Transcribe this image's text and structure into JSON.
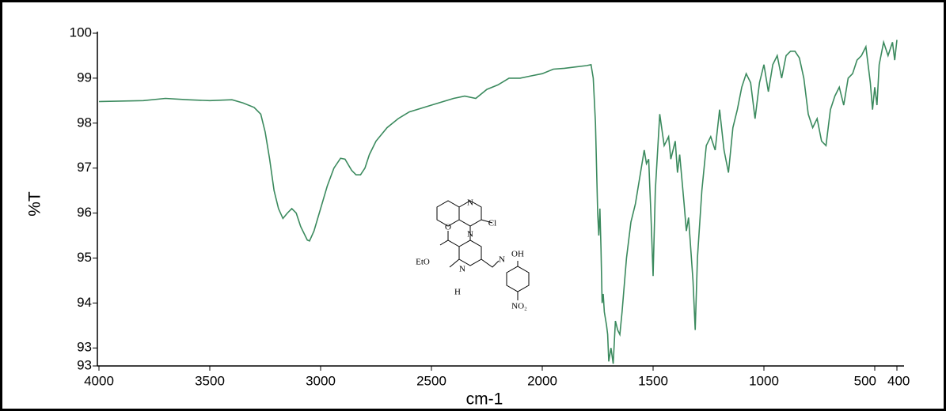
{
  "chart_data": {
    "type": "line",
    "x_label": "cm-1",
    "y_label": "%T",
    "xlim": [
      4000,
      400
    ],
    "ylim": [
      92.6,
      100
    ],
    "xticks": [
      4000,
      3500,
      3000,
      2500,
      2000,
      1500,
      1000,
      500,
      400
    ],
    "yticks": [
      100,
      99,
      98,
      97,
      96,
      95,
      94,
      93,
      {
        "value": 92.6,
        "label": "93"
      }
    ],
    "structure_labels": [
      "N",
      "Cl",
      "EtO",
      "O",
      "N",
      "N",
      "N",
      "H",
      "OH",
      "NO₂"
    ],
    "series": [
      {
        "color": "#3b8a5e",
        "x": [
          4000,
          3800,
          3700,
          3600,
          3500,
          3400,
          3350,
          3300,
          3270,
          3250,
          3230,
          3210,
          3190,
          3170,
          3150,
          3130,
          3110,
          3090,
          3060,
          3050,
          3030,
          3000,
          2970,
          2940,
          2910,
          2890,
          2860,
          2840,
          2820,
          2800,
          2780,
          2750,
          2700,
          2650,
          2600,
          2500,
          2400,
          2350,
          2300,
          2250,
          2200,
          2150,
          2100,
          2050,
          2000,
          1950,
          1900,
          1850,
          1800,
          1780,
          1770,
          1760,
          1755,
          1750,
          1745,
          1740,
          1735,
          1730,
          1725,
          1720,
          1710,
          1705,
          1700,
          1690,
          1680,
          1670,
          1660,
          1650,
          1640,
          1620,
          1600,
          1580,
          1560,
          1540,
          1530,
          1520,
          1510,
          1500,
          1490,
          1470,
          1450,
          1430,
          1420,
          1400,
          1390,
          1380,
          1360,
          1350,
          1340,
          1320,
          1310,
          1300,
          1280,
          1260,
          1240,
          1220,
          1200,
          1180,
          1160,
          1140,
          1120,
          1100,
          1080,
          1060,
          1040,
          1020,
          1000,
          980,
          960,
          940,
          920,
          900,
          880,
          860,
          840,
          820,
          800,
          780,
          760,
          740,
          720,
          700,
          680,
          660,
          640,
          620,
          600,
          580,
          560,
          540,
          520,
          510,
          500,
          490,
          480,
          460,
          440,
          420,
          410,
          400
        ],
        "values": [
          98.48,
          98.5,
          98.55,
          98.52,
          98.5,
          98.52,
          98.45,
          98.35,
          98.2,
          97.8,
          97.2,
          96.5,
          96.1,
          95.88,
          96.0,
          96.1,
          96.0,
          95.7,
          95.4,
          95.38,
          95.6,
          96.1,
          96.6,
          97.0,
          97.22,
          97.2,
          96.95,
          96.85,
          96.85,
          97.0,
          97.3,
          97.6,
          97.9,
          98.1,
          98.25,
          98.4,
          98.55,
          98.6,
          98.55,
          98.75,
          98.85,
          99.0,
          99.0,
          99.05,
          99.1,
          99.2,
          99.22,
          99.25,
          99.28,
          99.3,
          99.0,
          98.0,
          97.0,
          96.0,
          95.5,
          96.1,
          95.2,
          94.0,
          94.2,
          93.8,
          93.5,
          93.3,
          92.7,
          93.0,
          92.65,
          93.6,
          93.4,
          93.3,
          93.8,
          95.0,
          95.8,
          96.2,
          96.8,
          97.4,
          97.1,
          97.2,
          96.0,
          94.6,
          96.5,
          98.2,
          97.5,
          97.7,
          97.2,
          97.6,
          96.9,
          97.3,
          96.2,
          95.6,
          95.9,
          94.5,
          93.4,
          95.0,
          96.5,
          97.5,
          97.7,
          97.4,
          98.3,
          97.4,
          96.9,
          97.9,
          98.3,
          98.8,
          99.1,
          98.9,
          98.1,
          98.9,
          99.3,
          98.7,
          99.3,
          99.5,
          99.0,
          99.5,
          99.6,
          99.6,
          99.45,
          99.0,
          98.2,
          97.9,
          98.1,
          97.6,
          97.5,
          98.3,
          98.6,
          98.8,
          98.4,
          99.0,
          99.1,
          99.4,
          99.5,
          99.7,
          98.9,
          98.3,
          98.8,
          98.4,
          99.3,
          99.8,
          99.5,
          99.8,
          99.4,
          99.85
        ]
      }
    ]
  }
}
